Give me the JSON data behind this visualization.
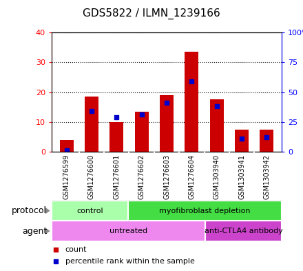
{
  "title": "GDS5822 / ILMN_1239166",
  "samples": [
    "GSM1276599",
    "GSM1276600",
    "GSM1276601",
    "GSM1276602",
    "GSM1276603",
    "GSM1276604",
    "GSM1303940",
    "GSM1303941",
    "GSM1303942"
  ],
  "count_values": [
    4.0,
    18.5,
    10.0,
    13.5,
    19.0,
    33.5,
    17.5,
    7.5,
    7.5
  ],
  "percentile_values": [
    1.0,
    34.0,
    29.0,
    31.0,
    41.0,
    59.0,
    38.0,
    11.0,
    12.0
  ],
  "left_ylim": [
    0,
    40
  ],
  "right_ylim": [
    0,
    100
  ],
  "left_yticks": [
    0,
    10,
    20,
    30,
    40
  ],
  "right_yticks": [
    0,
    25,
    50,
    75,
    100
  ],
  "right_yticklabels": [
    "0",
    "25",
    "50",
    "75",
    "100%"
  ],
  "bar_color": "#cc0000",
  "dot_color": "#0000cc",
  "sample_bg_color": "#c8c8c8",
  "protocol_groups": [
    {
      "label": "control",
      "start": 0,
      "end": 3,
      "color": "#aaffaa"
    },
    {
      "label": "myofibroblast depletion",
      "start": 3,
      "end": 9,
      "color": "#44dd44"
    }
  ],
  "agent_groups": [
    {
      "label": "untreated",
      "start": 0,
      "end": 6,
      "color": "#ee88ee"
    },
    {
      "label": "anti-CTLA4 antibody",
      "start": 6,
      "end": 9,
      "color": "#cc44cc"
    }
  ],
  "legend_count_label": "count",
  "legend_pct_label": "percentile rank within the sample",
  "protocol_label": "protocol",
  "agent_label": "agent",
  "title_fontsize": 11,
  "tick_fontsize": 8,
  "sample_fontsize": 7,
  "row_label_fontsize": 9,
  "group_label_fontsize": 8,
  "legend_fontsize": 8
}
